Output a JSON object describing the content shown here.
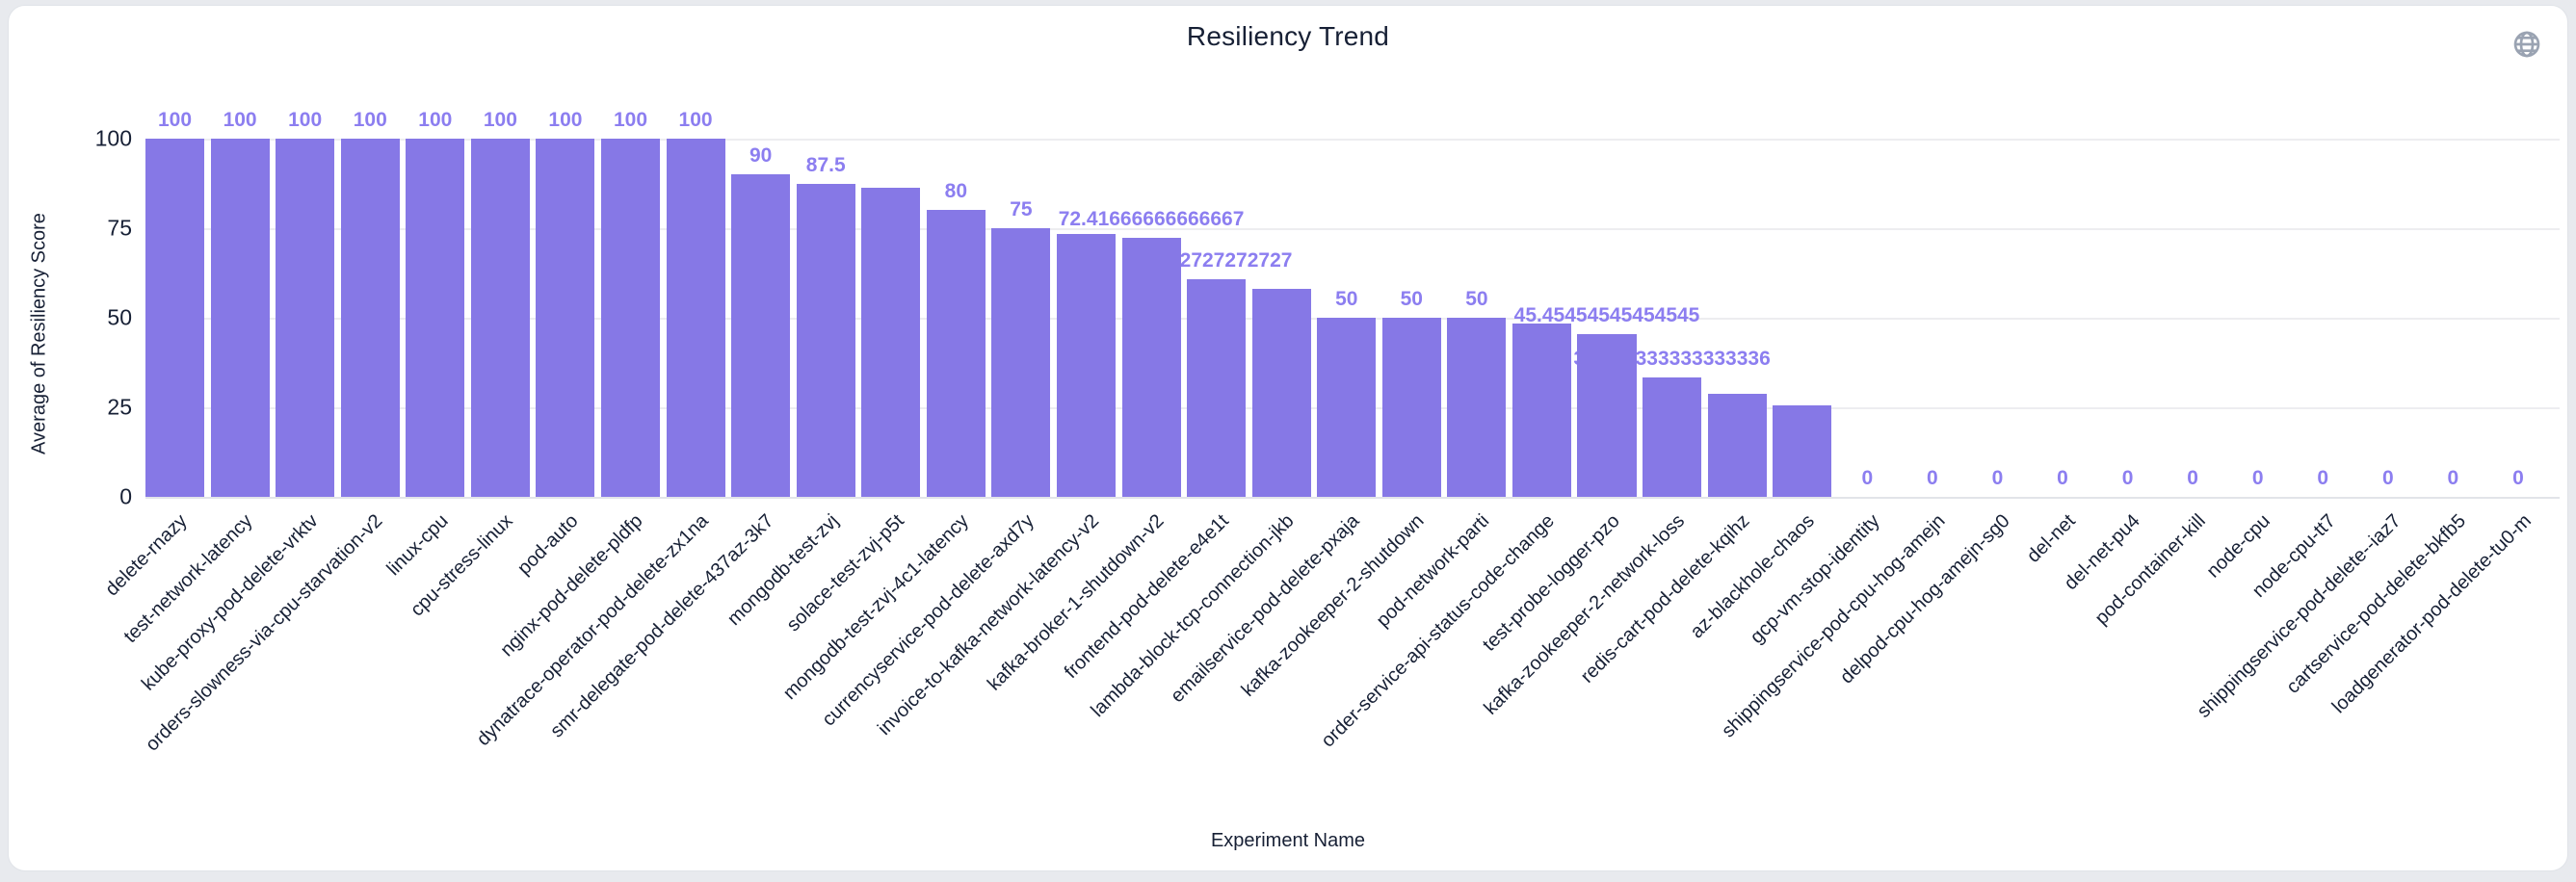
{
  "header": {
    "title": "Resiliency Trend",
    "globe_icon": "globe-icon"
  },
  "chart_data": {
    "type": "bar",
    "title": "Resiliency Trend",
    "xlabel": "Experiment Name",
    "ylabel": "Average of Resiliency Score",
    "ylim": [
      0,
      100
    ],
    "yticks": [
      "0",
      "25",
      "50",
      "75",
      "100"
    ],
    "grid": true,
    "legend": false,
    "bar_color": "#8678e6",
    "value_label_color": "#8c7ef0",
    "axis_text_color": "#172035",
    "bars": [
      {
        "name": "delete-rnazy",
        "value": 100,
        "label": "100"
      },
      {
        "name": "test-network-latency",
        "value": 100,
        "label": "100"
      },
      {
        "name": "kube-proxy-pod-delete-vrktv",
        "value": 100,
        "label": "100"
      },
      {
        "name": "orders-slowness-via-cpu-starvation-v2",
        "value": 100,
        "label": "100"
      },
      {
        "name": "linux-cpu",
        "value": 100,
        "label": "100"
      },
      {
        "name": "cpu-stress-linux",
        "value": 100,
        "label": "100"
      },
      {
        "name": "pod-auto",
        "value": 100,
        "label": "100"
      },
      {
        "name": "nginx-pod-delete-pldfp",
        "value": 100,
        "label": "100"
      },
      {
        "name": "dynatrace-operator-pod-delete-zx1na",
        "value": 100,
        "label": "100"
      },
      {
        "name": "smr-delegate-pod-delete-437az-3k7",
        "value": 90,
        "label": "90"
      },
      {
        "name": "mongodb-test-zvj",
        "value": 87.5,
        "label": "87.5"
      },
      {
        "name": "solace-test-zvj-p5t",
        "value": 86.36363636363636,
        "label": null
      },
      {
        "name": "mongodb-test-zvj-4c1-latency",
        "value": 80,
        "label": "80"
      },
      {
        "name": "currencyservice-pod-delete-axd7y",
        "value": 75,
        "label": "75"
      },
      {
        "name": "invoice-to-kafka-network-latency-v2",
        "value": 73.33333333333333,
        "label": null
      },
      {
        "name": "kafka-broker-1-shutdown-v2",
        "value": 72.41666666666667,
        "label": "72.41666666666667"
      },
      {
        "name": "frontend-pod-delete-e4e1t",
        "value": 60.72727272727,
        "label": "60.72727272727"
      },
      {
        "name": "lambda-block-tcp-connection-jkb",
        "value": 58,
        "label": null
      },
      {
        "name": "emailservice-pod-delete-pxaja",
        "value": 50,
        "label": "50"
      },
      {
        "name": "kafka-zookeeper-2-shutdown",
        "value": 50,
        "label": "50"
      },
      {
        "name": "pod-network-parti",
        "value": 50,
        "label": "50"
      },
      {
        "name": "order-service-api-status-code-change",
        "value": 48.33333333333333,
        "label": null
      },
      {
        "name": "test-probe-logger-pzo",
        "value": 45.45454545454545,
        "label": "45.45454545454545"
      },
      {
        "name": "kafka-zookeeper-2-network-loss",
        "value": 33.333333333333336,
        "label": "33.333333333333336"
      },
      {
        "name": "redis-cart-pod-delete-kqihz",
        "value": 28.75,
        "label": null
      },
      {
        "name": "az-blackhole-chaos",
        "value": 25.45454545454545,
        "label": null
      },
      {
        "name": "gcp-vm-stop-identity",
        "value": 0,
        "label": "0"
      },
      {
        "name": "shippingservice-pod-cpu-hog-amejn",
        "value": 0,
        "label": "0"
      },
      {
        "name": "delpod-cpu-hog-amejn-sg0",
        "value": 0,
        "label": "0"
      },
      {
        "name": "del-net",
        "value": 0,
        "label": "0"
      },
      {
        "name": "del-net-pu4",
        "value": 0,
        "label": "0"
      },
      {
        "name": "pod-container-kill",
        "value": 0,
        "label": "0"
      },
      {
        "name": "node-cpu",
        "value": 0,
        "label": "0"
      },
      {
        "name": "node-cpu-tt7",
        "value": 0,
        "label": "0"
      },
      {
        "name": "shippingservice-pod-delete--iaz7",
        "value": 0,
        "label": "0"
      },
      {
        "name": "cartservice-pod-delete-bkfb5",
        "value": 0,
        "label": "0"
      },
      {
        "name": "loadgenerator-pod-delete-tu0-m",
        "value": 0,
        "label": "0"
      }
    ]
  }
}
